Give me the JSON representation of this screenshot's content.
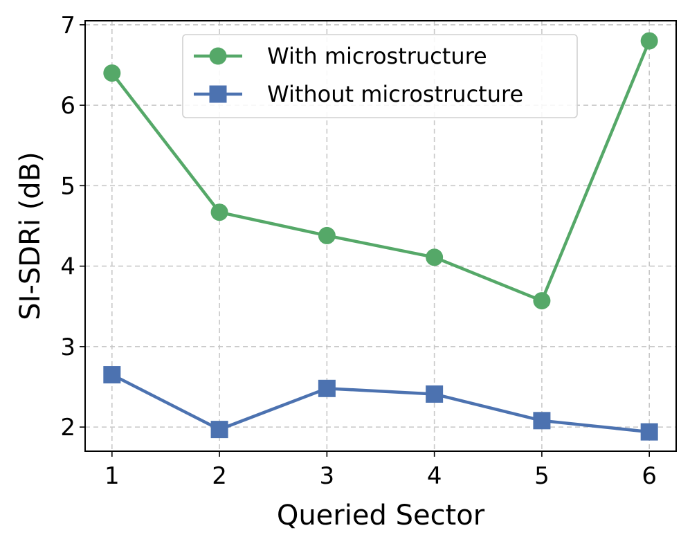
{
  "chart_data": {
    "type": "line",
    "title": "",
    "xlabel": "Queried Sector",
    "ylabel": "SI-SDRi (dB)",
    "x": [
      1,
      2,
      3,
      4,
      5,
      6
    ],
    "xlim": [
      0.75,
      6.25
    ],
    "ylim": [
      1.7,
      7.05
    ],
    "xticks": [
      "1",
      "2",
      "3",
      "4",
      "5",
      "6"
    ],
    "yticks": [
      "2",
      "3",
      "4",
      "5",
      "6",
      "7"
    ],
    "grid": true,
    "legend_position": "upper center",
    "series": [
      {
        "name": "With microstructure",
        "values": [
          6.4,
          4.67,
          4.38,
          4.11,
          3.57,
          6.8
        ],
        "color": "#55a868",
        "marker": "circle"
      },
      {
        "name": "Without microstructure",
        "values": [
          2.65,
          1.97,
          2.48,
          2.41,
          2.08,
          1.94
        ],
        "color": "#4c72b0",
        "marker": "square"
      }
    ]
  }
}
